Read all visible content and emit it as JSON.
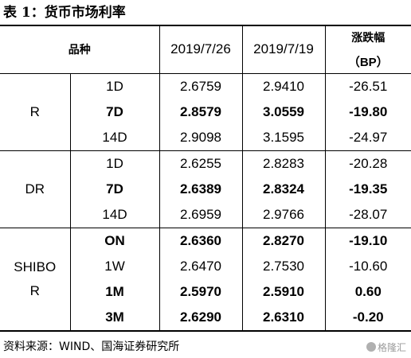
{
  "title": "表 1：货币市场利率",
  "header": {
    "category": "品种",
    "date1": "2019/7/26",
    "date2": "2019/7/19",
    "change_label": "涨跌幅",
    "change_unit": "（BP）"
  },
  "groups": [
    {
      "name": "R",
      "rows": [
        {
          "term": "1D",
          "v1": "2.6759",
          "v2": "2.9410",
          "chg": "-26.51",
          "bold": false
        },
        {
          "term": "7D",
          "v1": "2.8579",
          "v2": "3.0559",
          "chg": "-19.80",
          "bold": true
        },
        {
          "term": "14D",
          "v1": "2.9098",
          "v2": "3.1595",
          "chg": "-24.97",
          "bold": false
        }
      ]
    },
    {
      "name": "DR",
      "rows": [
        {
          "term": "1D",
          "v1": "2.6255",
          "v2": "2.8283",
          "chg": "-20.28",
          "bold": false
        },
        {
          "term": "7D",
          "v1": "2.6389",
          "v2": "2.8324",
          "chg": "-19.35",
          "bold": true
        },
        {
          "term": "14D",
          "v1": "2.6959",
          "v2": "2.9766",
          "chg": "-28.07",
          "bold": false
        }
      ]
    },
    {
      "name_line1": "SHIBO",
      "name_line2": "R",
      "rows": [
        {
          "term": "ON",
          "v1": "2.6360",
          "v2": "2.8270",
          "chg": "-19.10",
          "bold": true
        },
        {
          "term": "1W",
          "v1": "2.6470",
          "v2": "2.7530",
          "chg": "-10.60",
          "bold": false
        },
        {
          "term": "1M",
          "v1": "2.5970",
          "v2": "2.5910",
          "chg": "0.60",
          "bold": true
        },
        {
          "term": "3M",
          "v1": "2.6290",
          "v2": "2.6310",
          "chg": "-0.20",
          "bold": true
        }
      ]
    }
  ],
  "source": "资料来源：WIND、国海证券研究所",
  "watermark": "格隆汇"
}
